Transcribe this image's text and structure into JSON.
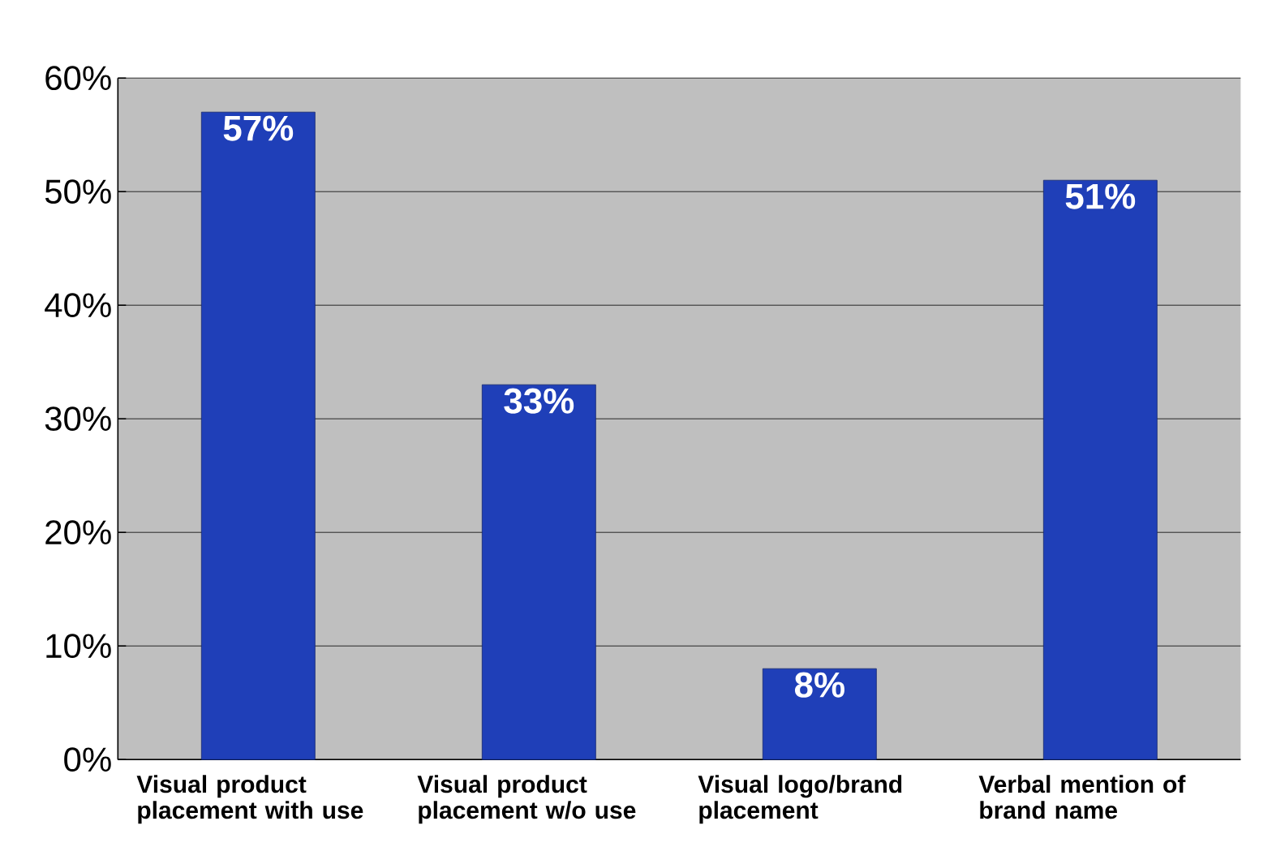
{
  "chart_data": {
    "type": "bar",
    "categories": [
      "Visual product placement with use",
      "Visual product placement w/o use",
      "Visual logo/brand placement",
      "Verbal mention of brand name"
    ],
    "values": [
      57,
      33,
      8,
      51
    ],
    "value_labels": [
      "57%",
      "33%",
      "8%",
      "51%"
    ],
    "color": "#1f3fb8",
    "ylim": [
      0,
      60
    ],
    "yticks": [
      {
        "value": 0,
        "label": "0%"
      },
      {
        "value": 10,
        "label": "10%"
      },
      {
        "value": 20,
        "label": "20%"
      },
      {
        "value": 30,
        "label": "30%"
      },
      {
        "value": 40,
        "label": "40%"
      },
      {
        "value": 50,
        "label": "50%"
      },
      {
        "value": 60,
        "label": "60%"
      }
    ],
    "grid": "y"
  }
}
